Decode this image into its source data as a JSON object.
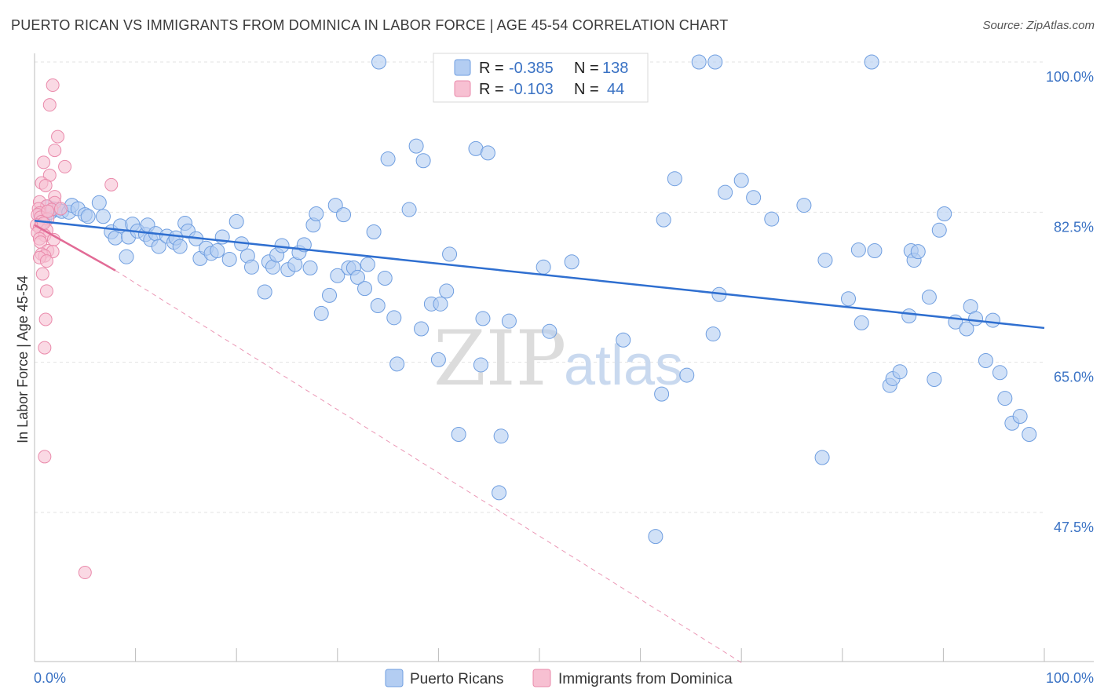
{
  "chart_data": {
    "type": "scatter",
    "title": "PUERTO RICAN VS IMMIGRANTS FROM DOMINICA IN LABOR FORCE | AGE 45-54 CORRELATION CHART",
    "source": "Source: ZipAtlas.com",
    "ylabel": "In Labor Force | Age 45-54",
    "xlim": [
      0,
      100
    ],
    "ylim": [
      32,
      102
    ],
    "x_tick_labels": [
      "0.0%",
      "100.0%"
    ],
    "y_ticks": [
      {
        "value": 100,
        "label": "100.0%"
      },
      {
        "value": 82.5,
        "label": "82.5%"
      },
      {
        "value": 65,
        "label": "65.0%"
      },
      {
        "value": 47.5,
        "label": "47.5%"
      }
    ],
    "grid": true,
    "legend": {
      "placement": "top-center",
      "rows": [
        {
          "r_label": "R =",
          "r_value": "-0.385",
          "n_label": "N =",
          "n_value": "138"
        },
        {
          "r_label": "R =",
          "r_value": "-0.103",
          "n_label": "N =",
          "n_value": "44"
        }
      ]
    },
    "watermark": {
      "zip": "ZIP",
      "atlas": "atlas"
    },
    "colors": {
      "blue_fill": "#b3cdf2",
      "blue_stroke": "#6f9ee0",
      "blue_line": "#2f6fd0",
      "pink_fill": "#f7c0d2",
      "pink_stroke": "#ea8aab",
      "pink_line": "#e26b96",
      "grid": "#e3e3e3",
      "axis": "#bbbbbb",
      "tick_label": "#3a72c4"
    },
    "series": [
      {
        "name": "Puerto Ricans",
        "color": "#b3cdf2",
        "trend": {
          "x": [
            0,
            100
          ],
          "y": [
            81.5,
            69.0
          ],
          "style": "solid"
        },
        "points": [
          [
            34.1,
            100
          ],
          [
            49.1,
            100
          ],
          [
            65.8,
            100
          ],
          [
            67.4,
            100
          ],
          [
            82.9,
            100
          ],
          [
            0.6,
            82.2
          ],
          [
            0.8,
            81.4
          ],
          [
            1.0,
            81.8
          ],
          [
            1.3,
            83.1
          ],
          [
            1.6,
            82.5
          ],
          [
            1.9,
            82.9
          ],
          [
            2.3,
            82.8
          ],
          [
            2.7,
            82.6
          ],
          [
            3.4,
            82.5
          ],
          [
            3.7,
            83.3
          ],
          [
            4.3,
            82.9
          ],
          [
            5.0,
            82.2
          ],
          [
            5.3,
            82.0
          ],
          [
            6.4,
            83.6
          ],
          [
            6.8,
            82.0
          ],
          [
            7.6,
            80.2
          ],
          [
            8.0,
            79.5
          ],
          [
            8.5,
            80.9
          ],
          [
            9.1,
            77.3
          ],
          [
            9.3,
            79.6
          ],
          [
            9.7,
            81.1
          ],
          [
            10.2,
            80.3
          ],
          [
            11.0,
            79.9
          ],
          [
            11.2,
            81.0
          ],
          [
            11.5,
            79.3
          ],
          [
            12.0,
            80.0
          ],
          [
            12.3,
            78.5
          ],
          [
            13.1,
            79.7
          ],
          [
            13.8,
            79.0
          ],
          [
            14.0,
            79.5
          ],
          [
            14.4,
            78.5
          ],
          [
            14.9,
            81.2
          ],
          [
            15.2,
            80.3
          ],
          [
            16.0,
            79.4
          ],
          [
            16.4,
            77.1
          ],
          [
            17.0,
            78.3
          ],
          [
            17.5,
            77.7
          ],
          [
            18.1,
            78.0
          ],
          [
            18.6,
            79.6
          ],
          [
            19.3,
            77.0
          ],
          [
            20.0,
            81.4
          ],
          [
            20.5,
            78.8
          ],
          [
            21.1,
            77.4
          ],
          [
            21.5,
            76.1
          ],
          [
            22.8,
            73.2
          ],
          [
            23.2,
            76.7
          ],
          [
            23.6,
            76.1
          ],
          [
            24.0,
            77.5
          ],
          [
            24.5,
            78.6
          ],
          [
            25.1,
            75.8
          ],
          [
            25.8,
            76.4
          ],
          [
            26.2,
            77.8
          ],
          [
            26.7,
            78.7
          ],
          [
            27.3,
            76.0
          ],
          [
            27.6,
            81.0
          ],
          [
            27.9,
            82.3
          ],
          [
            28.4,
            70.7
          ],
          [
            29.2,
            72.8
          ],
          [
            29.8,
            83.3
          ],
          [
            30.0,
            75.1
          ],
          [
            30.6,
            82.2
          ],
          [
            31.1,
            76.0
          ],
          [
            31.6,
            76.0
          ],
          [
            32.0,
            74.9
          ],
          [
            32.7,
            73.6
          ],
          [
            33.0,
            76.4
          ],
          [
            33.6,
            80.2
          ],
          [
            34.0,
            71.6
          ],
          [
            34.7,
            74.8
          ],
          [
            35.0,
            88.7
          ],
          [
            35.6,
            70.2
          ],
          [
            35.9,
            64.8
          ],
          [
            37.1,
            82.8
          ],
          [
            37.8,
            90.2
          ],
          [
            38.3,
            68.9
          ],
          [
            38.5,
            88.5
          ],
          [
            39.3,
            71.8
          ],
          [
            40.0,
            65.3
          ],
          [
            40.2,
            71.8
          ],
          [
            40.8,
            73.3
          ],
          [
            41.1,
            77.6
          ],
          [
            42.0,
            56.6
          ],
          [
            43.7,
            89.9
          ],
          [
            44.2,
            64.7
          ],
          [
            44.4,
            70.1
          ],
          [
            44.9,
            89.4
          ],
          [
            46.0,
            49.8
          ],
          [
            46.2,
            56.4
          ],
          [
            47.0,
            69.8
          ],
          [
            50.4,
            76.1
          ],
          [
            51.0,
            68.6
          ],
          [
            53.2,
            76.7
          ],
          [
            58.3,
            67.6
          ],
          [
            61.5,
            44.7
          ],
          [
            62.1,
            61.3
          ],
          [
            62.3,
            81.6
          ],
          [
            63.4,
            86.4
          ],
          [
            64.6,
            63.5
          ],
          [
            67.2,
            68.3
          ],
          [
            67.8,
            72.9
          ],
          [
            68.4,
            84.8
          ],
          [
            70.0,
            86.2
          ],
          [
            71.2,
            84.2
          ],
          [
            73.0,
            81.7
          ],
          [
            76.2,
            83.3
          ],
          [
            78.0,
            53.9
          ],
          [
            78.3,
            76.9
          ],
          [
            80.6,
            72.4
          ],
          [
            81.6,
            78.1
          ],
          [
            81.9,
            69.6
          ],
          [
            83.2,
            78.0
          ],
          [
            84.7,
            62.3
          ],
          [
            85.0,
            63.1
          ],
          [
            85.7,
            63.9
          ],
          [
            86.6,
            70.4
          ],
          [
            86.8,
            78.0
          ],
          [
            87.1,
            76.9
          ],
          [
            87.5,
            77.9
          ],
          [
            88.6,
            72.6
          ],
          [
            89.1,
            63.0
          ],
          [
            89.6,
            80.4
          ],
          [
            90.1,
            82.3
          ],
          [
            91.2,
            69.7
          ],
          [
            92.3,
            68.9
          ],
          [
            92.7,
            71.5
          ],
          [
            93.2,
            70.1
          ],
          [
            94.2,
            65.2
          ],
          [
            94.9,
            69.9
          ],
          [
            95.6,
            63.8
          ],
          [
            96.1,
            60.8
          ],
          [
            96.8,
            57.9
          ],
          [
            97.6,
            58.7
          ],
          [
            98.5,
            56.6
          ]
        ]
      },
      {
        "name": "Immigrants from Dominica",
        "color": "#f7c0d2",
        "trend": {
          "x": [
            0,
            8.0
          ],
          "y": [
            81.0,
            75.7
          ],
          "style": "solid",
          "extended_x": [
            8.0,
            70.0
          ],
          "extended_y": [
            75.7,
            30.0
          ],
          "extended_style": "dashed"
        },
        "points": [
          [
            1.8,
            97.3
          ],
          [
            1.5,
            95.0
          ],
          [
            2.3,
            91.3
          ],
          [
            2.0,
            89.7
          ],
          [
            0.9,
            88.3
          ],
          [
            3.0,
            87.8
          ],
          [
            1.5,
            86.8
          ],
          [
            0.7,
            85.9
          ],
          [
            1.1,
            85.6
          ],
          [
            2.0,
            84.3
          ],
          [
            0.5,
            83.7
          ],
          [
            2.0,
            83.6
          ],
          [
            7.6,
            85.7
          ],
          [
            1.2,
            83.2
          ],
          [
            0.4,
            82.9
          ],
          [
            1.7,
            82.8
          ],
          [
            0.5,
            82.4
          ],
          [
            0.3,
            82.2
          ],
          [
            0.6,
            81.9
          ],
          [
            1.3,
            81.7
          ],
          [
            0.7,
            81.4
          ],
          [
            0.2,
            81.0
          ],
          [
            0.5,
            80.7
          ],
          [
            1.2,
            80.4
          ],
          [
            0.3,
            80.1
          ],
          [
            1.0,
            79.8
          ],
          [
            0.5,
            79.4
          ],
          [
            1.9,
            79.3
          ],
          [
            0.6,
            79.0
          ],
          [
            1.3,
            78.0
          ],
          [
            1.8,
            77.9
          ],
          [
            0.7,
            77.6
          ],
          [
            1.0,
            77.4
          ],
          [
            0.5,
            77.2
          ],
          [
            1.2,
            76.8
          ],
          [
            0.8,
            75.3
          ],
          [
            1.2,
            73.3
          ],
          [
            1.1,
            70.0
          ],
          [
            1.0,
            66.7
          ],
          [
            1.0,
            54.0
          ],
          [
            5.0,
            40.5
          ],
          [
            1.3,
            82.6
          ],
          [
            0.9,
            81.2
          ],
          [
            2.6,
            82.9
          ]
        ]
      }
    ]
  },
  "bottom_legend": {
    "items": [
      {
        "label": "Puerto Ricans",
        "swatch": "#b3cdf2",
        "stroke": "#6f9ee0"
      },
      {
        "label": "Immigrants from Dominica",
        "swatch": "#f7c0d2",
        "stroke": "#ea8aab"
      }
    ]
  }
}
